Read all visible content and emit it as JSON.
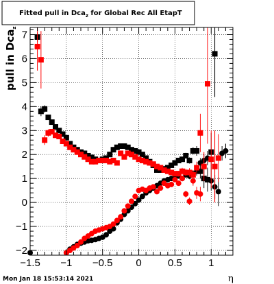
{
  "chart_data": {
    "type": "scatter",
    "title_main": "Fitted pull in Dca",
    "title_sub": "z",
    "title_rest": " for Global Rec All EtapT",
    "ylabel_main": "pull in Dca",
    "ylabel_sub": "z",
    "xlabel": "η",
    "footer": "Mon Jan 18 15:53:14 2021",
    "xlim": [
      -1.5,
      1.3
    ],
    "ylim": [
      -2.2,
      7.3
    ],
    "x_ticks": [
      {
        "v": -1.5,
        "label": "−1.5"
      },
      {
        "v": -1,
        "label": "−1"
      },
      {
        "v": -0.5,
        "label": "−0.5"
      },
      {
        "v": 0,
        "label": "0"
      },
      {
        "v": 0.5,
        "label": "0.5"
      },
      {
        "v": 1,
        "label": "1"
      }
    ],
    "y_ticks": [
      {
        "v": -2,
        "label": "−2"
      },
      {
        "v": -1,
        "label": "−1"
      },
      {
        "v": 0,
        "label": "0"
      },
      {
        "v": 1,
        "label": "1"
      },
      {
        "v": 2,
        "label": "2"
      },
      {
        "v": 3,
        "label": "3"
      },
      {
        "v": 4,
        "label": "4"
      },
      {
        "v": 5,
        "label": "5"
      },
      {
        "v": 6,
        "label": "6"
      },
      {
        "v": 7,
        "label": "7"
      }
    ],
    "grid": true,
    "series": [
      {
        "color": "#000000",
        "marker": "square",
        "points": [
          [
            -1.4,
            6.9,
            0.2
          ],
          [
            -1.35,
            3.8,
            0.2
          ],
          [
            -1.3,
            3.9,
            0.15
          ],
          [
            -1.25,
            3.55,
            0.1
          ],
          [
            -1.2,
            3.35,
            0.1
          ],
          [
            -1.15,
            3.15,
            0.1
          ],
          [
            -1.1,
            3.0,
            0.08
          ],
          [
            -1.05,
            2.85,
            0.08
          ],
          [
            -1.0,
            2.7,
            0.08
          ],
          [
            -0.95,
            2.45,
            0.07
          ],
          [
            -0.9,
            2.3,
            0.07
          ],
          [
            -0.85,
            2.2,
            0.07
          ],
          [
            -0.8,
            2.1,
            0.06
          ],
          [
            -0.75,
            2.05,
            0.06
          ],
          [
            -0.7,
            1.95,
            0.06
          ],
          [
            -0.65,
            1.88,
            0.06
          ],
          [
            -0.6,
            1.8,
            0.06
          ],
          [
            -0.55,
            1.75,
            0.06
          ],
          [
            -0.5,
            1.8,
            0.06
          ],
          [
            -0.45,
            1.85,
            0.06
          ],
          [
            -0.4,
            2.0,
            0.06
          ],
          [
            -0.35,
            2.2,
            0.06
          ],
          [
            -0.3,
            2.3,
            0.06
          ],
          [
            -0.25,
            2.35,
            0.06
          ],
          [
            -0.2,
            2.35,
            0.06
          ],
          [
            -0.15,
            2.3,
            0.06
          ],
          [
            -0.1,
            2.2,
            0.06
          ],
          [
            -0.05,
            2.15,
            0.06
          ],
          [
            0.0,
            2.1,
            0.06
          ],
          [
            0.05,
            2.0,
            0.06
          ],
          [
            0.1,
            1.85,
            0.06
          ],
          [
            0.15,
            1.7,
            0.06
          ],
          [
            0.2,
            1.55,
            0.06
          ],
          [
            0.25,
            1.35,
            0.06
          ],
          [
            0.3,
            1.35,
            0.07
          ],
          [
            0.35,
            1.4,
            0.07
          ],
          [
            0.4,
            1.45,
            0.08
          ],
          [
            0.45,
            1.55,
            0.08
          ],
          [
            0.5,
            1.65,
            0.09
          ],
          [
            0.55,
            1.75,
            0.1
          ],
          [
            0.6,
            1.8,
            0.1
          ],
          [
            0.65,
            1.95,
            0.12
          ],
          [
            0.7,
            1.75,
            0.13
          ],
          [
            0.75,
            2.15,
            0.15
          ],
          [
            0.8,
            2.15,
            0.2
          ],
          [
            0.85,
            1.3,
            0.3
          ],
          [
            0.9,
            1.0,
            0.4
          ],
          [
            0.95,
            0.95,
            0.5
          ],
          [
            1.0,
            2.1,
            0.8
          ],
          [
            1.05,
            6.2,
            1.8
          ]
        ]
      },
      {
        "color": "#000000",
        "marker": "circle",
        "points": [
          [
            -1.5,
            -2.1,
            0.1
          ],
          [
            -1.0,
            -2.1,
            0.08
          ],
          [
            -0.95,
            -1.95,
            0.07
          ],
          [
            -0.9,
            -1.85,
            0.07
          ],
          [
            -0.85,
            -1.75,
            0.06
          ],
          [
            -0.8,
            -1.7,
            0.06
          ],
          [
            -0.75,
            -1.65,
            0.06
          ],
          [
            -0.7,
            -1.6,
            0.06
          ],
          [
            -0.65,
            -1.58,
            0.06
          ],
          [
            -0.6,
            -1.55,
            0.06
          ],
          [
            -0.55,
            -1.5,
            0.06
          ],
          [
            -0.5,
            -1.45,
            0.06
          ],
          [
            -0.45,
            -1.35,
            0.06
          ],
          [
            -0.4,
            -1.2,
            0.06
          ],
          [
            -0.35,
            -1.1,
            0.06
          ],
          [
            -0.3,
            -0.85,
            0.06
          ],
          [
            -0.25,
            -0.7,
            0.06
          ],
          [
            -0.2,
            -0.5,
            0.06
          ],
          [
            -0.15,
            -0.35,
            0.06
          ],
          [
            -0.1,
            -0.2,
            0.06
          ],
          [
            -0.05,
            -0.05,
            0.06
          ],
          [
            0.0,
            0.1,
            0.06
          ],
          [
            0.05,
            0.25,
            0.06
          ],
          [
            0.1,
            0.4,
            0.06
          ],
          [
            0.15,
            0.5,
            0.06
          ],
          [
            0.2,
            0.6,
            0.06
          ],
          [
            0.25,
            0.7,
            0.06
          ],
          [
            0.3,
            0.8,
            0.07
          ],
          [
            0.35,
            0.9,
            0.07
          ],
          [
            0.4,
            0.95,
            0.08
          ],
          [
            0.45,
            1.0,
            0.08
          ],
          [
            0.5,
            1.05,
            0.09
          ],
          [
            0.55,
            1.1,
            0.1
          ],
          [
            0.6,
            1.0,
            0.1
          ],
          [
            0.65,
            1.15,
            0.12
          ],
          [
            0.7,
            1.1,
            0.13
          ],
          [
            0.75,
            1.2,
            0.15
          ],
          [
            0.8,
            1.3,
            0.18
          ],
          [
            0.85,
            1.65,
            0.2
          ],
          [
            0.9,
            1.75,
            0.25
          ],
          [
            0.95,
            1.85,
            0.3
          ],
          [
            1.0,
            0.9,
            0.4
          ],
          [
            1.05,
            0.65,
            0.5
          ],
          [
            1.1,
            0.45,
            0.6
          ],
          [
            1.15,
            2.05,
            0.3
          ],
          [
            1.2,
            2.15,
            0.3
          ]
        ]
      },
      {
        "color": "#ff0000",
        "marker": "square",
        "points": [
          [
            -1.4,
            6.5,
            1.0
          ],
          [
            -1.35,
            5.95,
            1.2
          ],
          [
            -1.3,
            2.6,
            0.2
          ],
          [
            -1.25,
            2.9,
            0.15
          ],
          [
            -1.2,
            2.95,
            0.1
          ],
          [
            -1.15,
            2.8,
            0.1
          ],
          [
            -1.1,
            2.75,
            0.08
          ],
          [
            -1.05,
            2.55,
            0.08
          ],
          [
            -1.0,
            2.45,
            0.08
          ],
          [
            -0.95,
            2.3,
            0.07
          ],
          [
            -0.9,
            2.2,
            0.07
          ],
          [
            -0.85,
            2.1,
            0.06
          ],
          [
            -0.8,
            2.0,
            0.06
          ],
          [
            -0.75,
            1.9,
            0.06
          ],
          [
            -0.7,
            1.8,
            0.06
          ],
          [
            -0.65,
            1.7,
            0.06
          ],
          [
            -0.6,
            1.7,
            0.06
          ],
          [
            -0.55,
            1.75,
            0.06
          ],
          [
            -0.5,
            1.75,
            0.06
          ],
          [
            -0.45,
            1.75,
            0.06
          ],
          [
            -0.4,
            1.7,
            0.06
          ],
          [
            -0.35,
            1.75,
            0.06
          ],
          [
            -0.3,
            1.65,
            0.06
          ],
          [
            -0.25,
            2.05,
            0.06
          ],
          [
            -0.2,
            1.9,
            0.06
          ],
          [
            -0.15,
            2.05,
            0.06
          ],
          [
            -0.1,
            2.0,
            0.06
          ],
          [
            -0.05,
            1.9,
            0.06
          ],
          [
            0.0,
            1.8,
            0.06
          ],
          [
            0.05,
            1.75,
            0.06
          ],
          [
            0.1,
            1.7,
            0.06
          ],
          [
            0.15,
            1.65,
            0.06
          ],
          [
            0.2,
            1.6,
            0.07
          ],
          [
            0.25,
            1.5,
            0.07
          ],
          [
            0.3,
            1.45,
            0.08
          ],
          [
            0.35,
            1.35,
            0.08
          ],
          [
            0.4,
            1.3,
            0.09
          ],
          [
            0.45,
            1.25,
            0.1
          ],
          [
            0.5,
            1.2,
            0.11
          ],
          [
            0.55,
            1.2,
            0.12
          ],
          [
            0.6,
            1.3,
            0.14
          ],
          [
            0.65,
            1.25,
            0.16
          ],
          [
            0.7,
            1.25,
            0.18
          ],
          [
            0.75,
            1.15,
            0.2
          ],
          [
            0.8,
            1.45,
            0.25
          ],
          [
            0.85,
            2.9,
            0.8
          ],
          [
            0.9,
            1.5,
            0.6
          ],
          [
            0.95,
            4.95,
            2.5
          ],
          [
            1.0,
            1.8,
            1.2
          ],
          [
            1.05,
            1.5,
            1.5
          ],
          [
            1.1,
            1.85,
            1.0
          ]
        ]
      },
      {
        "color": "#ff0000",
        "marker": "circle",
        "points": [
          [
            -1.0,
            -2.1,
            0.08
          ],
          [
            -0.95,
            -2.0,
            0.07
          ],
          [
            -0.9,
            -1.9,
            0.07
          ],
          [
            -0.85,
            -1.8,
            0.06
          ],
          [
            -0.8,
            -1.65,
            0.06
          ],
          [
            -0.75,
            -1.5,
            0.06
          ],
          [
            -0.7,
            -1.4,
            0.06
          ],
          [
            -0.65,
            -1.3,
            0.06
          ],
          [
            -0.6,
            -1.2,
            0.06
          ],
          [
            -0.55,
            -1.15,
            0.06
          ],
          [
            -0.5,
            -1.1,
            0.06
          ],
          [
            -0.45,
            -1.05,
            0.06
          ],
          [
            -0.4,
            -1.0,
            0.06
          ],
          [
            -0.35,
            -0.9,
            0.06
          ],
          [
            -0.3,
            -0.75,
            0.06
          ],
          [
            -0.25,
            -0.6,
            0.06
          ],
          [
            -0.2,
            -0.35,
            0.06
          ],
          [
            -0.15,
            -0.15,
            0.06
          ],
          [
            -0.1,
            0.05,
            0.06
          ],
          [
            -0.05,
            0.25,
            0.06
          ],
          [
            0.0,
            0.5,
            0.06
          ],
          [
            0.05,
            0.55,
            0.06
          ],
          [
            0.1,
            0.5,
            0.06
          ],
          [
            0.15,
            0.6,
            0.06
          ],
          [
            0.2,
            0.65,
            0.06
          ],
          [
            0.25,
            0.45,
            0.07
          ],
          [
            0.3,
            0.6,
            0.07
          ],
          [
            0.35,
            0.8,
            0.08
          ],
          [
            0.4,
            0.7,
            0.08
          ],
          [
            0.45,
            0.75,
            0.09
          ],
          [
            0.5,
            0.95,
            0.1
          ],
          [
            0.55,
            0.8,
            0.11
          ],
          [
            0.6,
            1.0,
            0.12
          ],
          [
            0.65,
            0.35,
            0.14
          ],
          [
            0.7,
            0.05,
            0.16
          ],
          [
            0.75,
            0.9,
            0.2
          ],
          [
            0.8,
            0.4,
            0.25
          ],
          [
            0.85,
            0.35,
            0.3
          ]
        ]
      }
    ]
  }
}
